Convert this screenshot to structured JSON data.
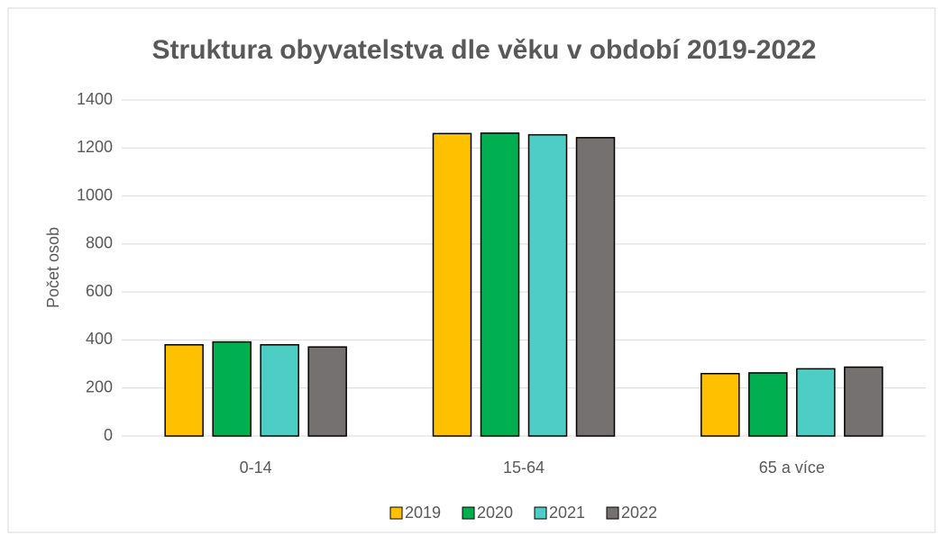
{
  "chart_data": {
    "type": "bar",
    "title": "Struktura obyvatelstva dle věku v období 2019-2022",
    "y_label": "Počet osob",
    "categories": [
      "0-14",
      "15-64",
      "65 a více"
    ],
    "series": [
      {
        "name": "2019",
        "color": "#ffc000",
        "values": [
          380,
          1260,
          260
        ]
      },
      {
        "name": "2020",
        "color": "#00b050",
        "values": [
          392,
          1262,
          263
        ]
      },
      {
        "name": "2021",
        "color": "#4ecdc4",
        "values": [
          380,
          1255,
          280
        ]
      },
      {
        "name": "2022",
        "color": "#767171",
        "values": [
          371,
          1243,
          287
        ]
      }
    ],
    "ylim": [
      0,
      1400
    ],
    "yticks": [
      0,
      200,
      400,
      600,
      800,
      1000,
      1200,
      1400
    ],
    "grid": true,
    "legend": "bottom"
  }
}
